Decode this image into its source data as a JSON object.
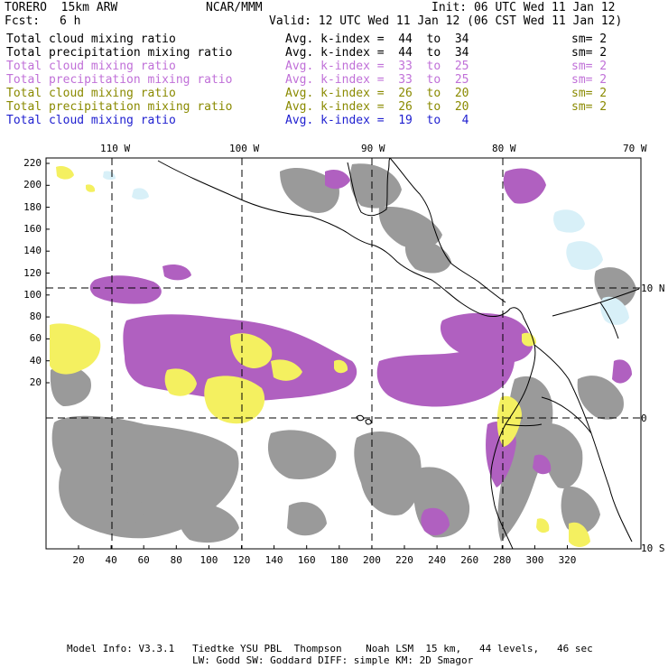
{
  "header": {
    "model": "TORERO  15km ARW",
    "org": "NCAR/MMM",
    "init": "Init: 06 UTC Wed 11 Jan 12",
    "fcst_label": "Fcst:",
    "fcst_value": "6 h",
    "valid": "Valid: 12 UTC Wed 11 Jan 12 (06 CST Wed 11 Jan 12)"
  },
  "legend": [
    {
      "label": "Total cloud mixing ratio",
      "kindex": "Avg. k-index =  44  to  34",
      "sm": "sm= 2",
      "color": "#000000"
    },
    {
      "label": "Total precipitation mixing ratio",
      "kindex": "Avg. k-index =  44  to  34",
      "sm": "sm= 2",
      "color": "#000000"
    },
    {
      "label": "Total cloud mixing ratio",
      "kindex": "Avg. k-index =  33  to  25",
      "sm": "sm= 2",
      "color": "#c070d8"
    },
    {
      "label": "Total precipitation mixing ratio",
      "kindex": "Avg. k-index =  33  to  25",
      "sm": "sm= 2",
      "color": "#c070d8"
    },
    {
      "label": "Total cloud mixing ratio",
      "kindex": "Avg. k-index =  26  to  20",
      "sm": "sm= 2",
      "color": "#8a8a00"
    },
    {
      "label": "Total precipitation mixing ratio",
      "kindex": "Avg. k-index =  26  to  20",
      "sm": "sm= 2",
      "color": "#8a8a00"
    },
    {
      "label": "Total cloud mixing ratio",
      "kindex": "Avg. k-index =  19  to   4",
      "sm": "",
      "color": "#2020d0"
    }
  ],
  "map": {
    "lon_labels": [
      "110 W",
      "100 W",
      "90 W",
      "80 W",
      "70 W"
    ],
    "lat_labels_right": [
      "10 N",
      "0",
      "10 S"
    ],
    "y_ticks": [
      "220",
      "200",
      "180",
      "160",
      "140",
      "120",
      "100",
      "80",
      "60",
      "40",
      "20"
    ],
    "x_ticks": [
      "20",
      "40",
      "60",
      "80",
      "100",
      "120",
      "140",
      "160",
      "180",
      "200",
      "220",
      "240",
      "260",
      "280",
      "300",
      "320"
    ],
    "colors": {
      "gray": "#9a9a9a",
      "purple": "#b060c0",
      "yellow": "#f4f060",
      "lightblue": "#d8f0f8",
      "grid": "#000000"
    }
  },
  "footer": {
    "line1": "Model Info: V3.3.1   Tiedtke YSU PBL  Thompson    Noah LSM  15 km,   44 levels,   46 sec",
    "line2": "LW: Godd SW: Goddard DIFF: simple KM: 2D Smagor"
  }
}
